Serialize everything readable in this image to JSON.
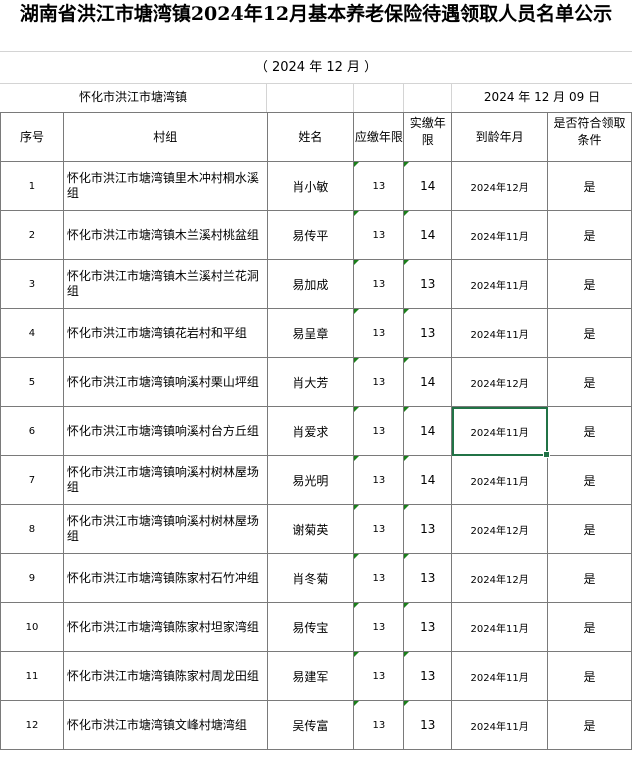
{
  "title": "湖南省洪江市塘湾镇2024年12月基本养老保险待遇领取人员名单公示",
  "period": "（ 2024 年 12 月 ）",
  "region": "怀化市洪江市塘湾镇",
  "date": "2024 年 12 月 09 日",
  "headers": [
    "序号",
    "村组",
    "姓名",
    "应缴年限",
    "实缴年限",
    "到龄年月",
    "是否符合领取条件"
  ],
  "rows": [
    {
      "no": "1",
      "group": "怀化市洪江市塘湾镇里木冲村桐水溪组",
      "name": "肖小敏",
      "due": "13",
      "paid": "14",
      "age": "2024年12月",
      "ok": "是"
    },
    {
      "no": "2",
      "group": "怀化市洪江市塘湾镇木兰溪村桃盆组",
      "name": "易传平",
      "due": "13",
      "paid": "14",
      "age": "2024年11月",
      "ok": "是"
    },
    {
      "no": "3",
      "group": "怀化市洪江市塘湾镇木兰溪村兰花洞组",
      "name": "易加成",
      "due": "13",
      "paid": "13",
      "age": "2024年11月",
      "ok": "是"
    },
    {
      "no": "4",
      "group": "怀化市洪江市塘湾镇花岩村和平组",
      "name": "易呈章",
      "due": "13",
      "paid": "13",
      "age": "2024年11月",
      "ok": "是"
    },
    {
      "no": "5",
      "group": "怀化市洪江市塘湾镇响溪村栗山坪组",
      "name": "肖大芳",
      "due": "13",
      "paid": "14",
      "age": "2024年12月",
      "ok": "是"
    },
    {
      "no": "6",
      "group": "怀化市洪江市塘湾镇响溪村台方丘组",
      "name": "肖爱求",
      "due": "13",
      "paid": "14",
      "age": "2024年11月",
      "ok": "是"
    },
    {
      "no": "7",
      "group": "怀化市洪江市塘湾镇响溪村树林屋场组",
      "name": "易光明",
      "due": "13",
      "paid": "14",
      "age": "2024年11月",
      "ok": "是"
    },
    {
      "no": "8",
      "group": "怀化市洪江市塘湾镇响溪村树林屋场组",
      "name": "谢菊英",
      "due": "13",
      "paid": "13",
      "age": "2024年12月",
      "ok": "是"
    },
    {
      "no": "9",
      "group": "怀化市洪江市塘湾镇陈家村石竹冲组",
      "name": "肖冬菊",
      "due": "13",
      "paid": "13",
      "age": "2024年12月",
      "ok": "是"
    },
    {
      "no": "10",
      "group": "怀化市洪江市塘湾镇陈家村坦家湾组",
      "name": "易传宝",
      "due": "13",
      "paid": "13",
      "age": "2024年11月",
      "ok": "是"
    },
    {
      "no": "11",
      "group": "怀化市洪江市塘湾镇陈家村周龙田组",
      "name": "易建军",
      "due": "13",
      "paid": "13",
      "age": "2024年11月",
      "ok": "是"
    },
    {
      "no": "12",
      "group": "怀化市洪江市塘湾镇文峰村塘湾组",
      "name": "吴传富",
      "due": "13",
      "paid": "13",
      "age": "2024年11月",
      "ok": "是"
    }
  ],
  "selection_color": "#217346"
}
